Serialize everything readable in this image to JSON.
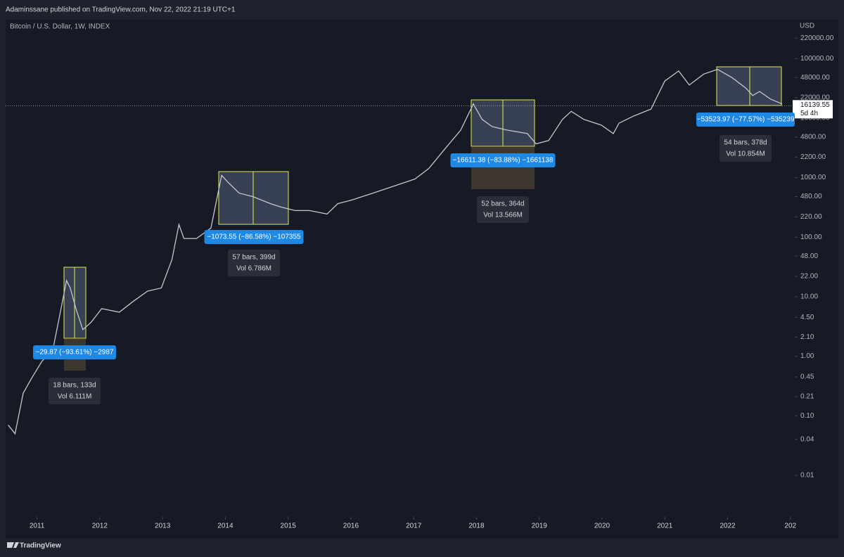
{
  "header": "Adaminssane published on TradingView.com, Nov 22, 2022 21:19 UTC+1",
  "footer": "TradingView",
  "chart_data": {
    "type": "line",
    "title": "Bitcoin / U.S. Dollar, 1W, INDEX",
    "y_unit": "USD",
    "log_y": true,
    "grid": false,
    "color": "#c3c7cf",
    "x": [
      2010.54,
      2010.65,
      2010.78,
      2010.91,
      2011.08,
      2011.25,
      2011.36,
      2011.47,
      2011.53,
      2011.62,
      2011.73,
      2011.86,
      2012.03,
      2012.31,
      2012.53,
      2012.76,
      2012.98,
      2013.15,
      2013.26,
      2013.34,
      2013.54,
      2013.77,
      2013.94,
      2014.05,
      2014.22,
      2014.44,
      2014.72,
      2014.89,
      2015.11,
      2015.34,
      2015.62,
      2015.79,
      2016.01,
      2016.35,
      2016.68,
      2017.02,
      2017.24,
      2017.47,
      2017.75,
      2017.95,
      2018.09,
      2018.25,
      2018.48,
      2018.81,
      2018.95,
      2019.15,
      2019.37,
      2019.51,
      2019.71,
      2019.99,
      2020.18,
      2020.27,
      2020.5,
      2020.78,
      2021.0,
      2021.22,
      2021.39,
      2021.62,
      2021.84,
      2022.07,
      2022.29,
      2022.4,
      2022.51,
      2022.68,
      2022.87
    ],
    "values": [
      0.07,
      0.05,
      0.24,
      0.42,
      0.83,
      1.24,
      4.8,
      18.7,
      14,
      6.3,
      2.8,
      3.7,
      6.3,
      5.5,
      8.3,
      12.4,
      14,
      42,
      163,
      95,
      95,
      142,
      1090,
      820,
      550,
      480,
      365,
      320,
      280,
      280,
      245,
      365,
      420,
      550,
      720,
      950,
      1420,
      2800,
      6300,
      17300,
      9500,
      7200,
      6300,
      5500,
      3700,
      4200,
      9500,
      13000,
      9500,
      7600,
      5500,
      8200,
      10800,
      14200,
      42000,
      62000,
      36000,
      55000,
      66000,
      48000,
      32000,
      24000,
      28000,
      21000,
      17300
    ],
    "xlim": [
      2010.5,
      2023.07
    ],
    "xticks": [
      2011,
      2012,
      2013,
      2014,
      2015,
      2016,
      2017,
      2018,
      2019,
      2020,
      2021,
      2022,
      {
        "value": 2023,
        "label": "202"
      }
    ],
    "ylim": [
      0.002,
      450000
    ],
    "yticks": [
      {
        "value": 220000,
        "label": "220000.00"
      },
      {
        "value": 100000,
        "label": "100000.00"
      },
      {
        "value": 48000,
        "label": "48000.00"
      },
      {
        "value": 22000,
        "label": "22000.00"
      },
      {
        "value": 10000,
        "label": "10000.00"
      },
      {
        "value": 4800,
        "label": "4800.00"
      },
      {
        "value": 2200,
        "label": "2200.00"
      },
      {
        "value": 1000,
        "label": "1000.00"
      },
      {
        "value": 480,
        "label": "480.00"
      },
      {
        "value": 220,
        "label": "220.00"
      },
      {
        "value": 100,
        "label": "100.00"
      },
      {
        "value": 48,
        "label": "48.00"
      },
      {
        "value": 22,
        "label": "22.00"
      },
      {
        "value": 10,
        "label": "10.00"
      },
      {
        "value": 4.5,
        "label": "4.50"
      },
      {
        "value": 2.1,
        "label": "2.10"
      },
      {
        "value": 1,
        "label": "1.00"
      },
      0.45,
      0.21,
      {
        "value": 0.1,
        "label": "0.10"
      },
      0.04,
      0.01
    ],
    "last_price": 16139.55,
    "last_price_countdown": "5d 4h",
    "annotations": [
      {
        "change": "−29.87 (−93.61%) −2987",
        "bars": "18 bars, 133d",
        "vol": "Vol 6.111M"
      },
      {
        "change": "−1073.55 (−86.58%) −107355",
        "bars": "57 bars, 399d",
        "vol": "Vol 6.786M"
      },
      {
        "change": "−16611.38 (−83.88%) −1661138",
        "bars": "52 bars, 364d",
        "vol": "Vol 13.566M"
      },
      {
        "change": "−53523.97 (−77.57%) −535239",
        "bars": "54 bars, 378d",
        "vol": "Vol 10.854M"
      }
    ]
  }
}
